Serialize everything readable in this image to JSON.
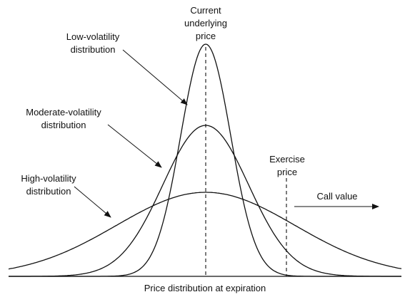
{
  "labels": {
    "current_price": [
      "Current",
      "underlying",
      "price"
    ],
    "low_vol": [
      "Low-volatility",
      "distribution"
    ],
    "moderate_vol": [
      "Moderate-volatility",
      "distribution"
    ],
    "high_vol": [
      "High-volatility",
      "distribution"
    ],
    "exercise_price": [
      "Exercise",
      "price"
    ],
    "call_value": "Call value",
    "x_axis": "Price distribution at expiration"
  },
  "colors": {
    "ink": "#111111",
    "background": "#ffffff"
  }
}
